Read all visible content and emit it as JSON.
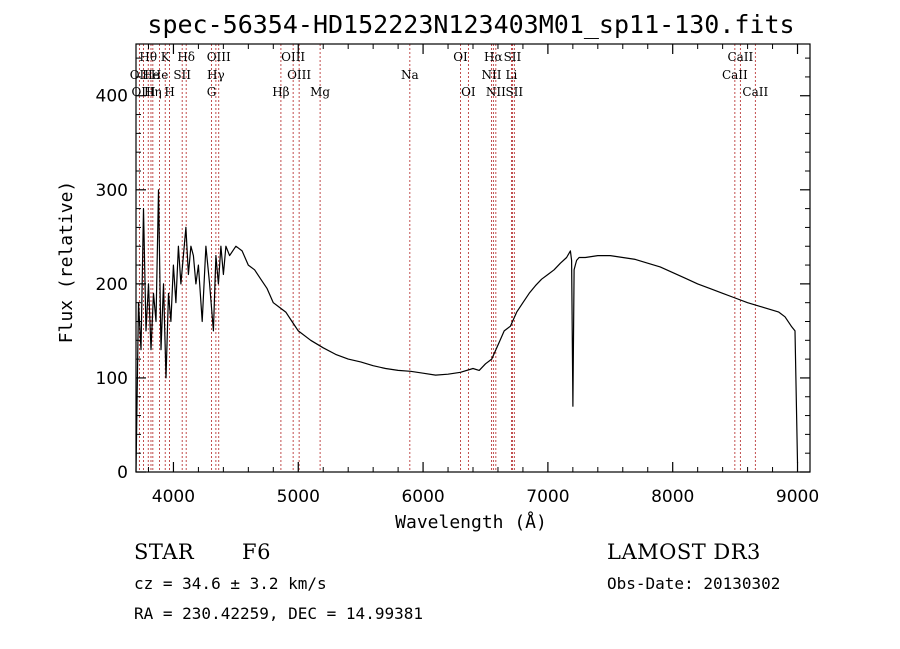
{
  "chart_data": {
    "type": "line",
    "title": "spec-56354-HD152223N123403M01_sp11-130.fits",
    "xlabel": "Wavelength (Å)",
    "ylabel": "Flux (relative)",
    "xlim": [
      3700,
      9100
    ],
    "ylim": [
      0,
      455
    ],
    "xticks": [
      4000,
      5000,
      6000,
      7000,
      8000,
      9000
    ],
    "yticks": [
      0,
      100,
      200,
      300,
      400
    ],
    "grid": false,
    "series": [
      {
        "name": "flux",
        "x": [
          3700,
          3720,
          3740,
          3760,
          3780,
          3800,
          3820,
          3840,
          3860,
          3880,
          3900,
          3920,
          3940,
          3960,
          3980,
          4000,
          4020,
          4040,
          4060,
          4080,
          4100,
          4120,
          4140,
          4160,
          4180,
          4200,
          4230,
          4260,
          4290,
          4320,
          4340,
          4360,
          4380,
          4400,
          4420,
          4450,
          4500,
          4550,
          4600,
          4650,
          4700,
          4750,
          4800,
          4850,
          4900,
          4950,
          5000,
          5100,
          5200,
          5300,
          5400,
          5500,
          5600,
          5700,
          5800,
          5900,
          6000,
          6100,
          6200,
          6300,
          6400,
          6450,
          6500,
          6550,
          6600,
          6650,
          6700,
          6750,
          6800,
          6850,
          6900,
          6950,
          7000,
          7050,
          7100,
          7150,
          7180,
          7190,
          7200,
          7210,
          7220,
          7230,
          7250,
          7300,
          7400,
          7500,
          7600,
          7700,
          7800,
          7900,
          8000,
          8100,
          8200,
          8300,
          8400,
          8500,
          8600,
          8700,
          8800,
          8850,
          8900,
          8950,
          8980,
          9000
        ],
        "y": [
          0,
          180,
          130,
          280,
          150,
          200,
          130,
          190,
          160,
          300,
          130,
          200,
          100,
          190,
          160,
          220,
          180,
          240,
          200,
          230,
          260,
          210,
          240,
          230,
          200,
          220,
          160,
          240,
          200,
          150,
          230,
          200,
          240,
          210,
          240,
          230,
          240,
          235,
          220,
          215,
          205,
          195,
          180,
          175,
          170,
          160,
          150,
          140,
          132,
          125,
          120,
          117,
          113,
          110,
          108,
          107,
          105,
          103,
          104,
          106,
          110,
          108,
          115,
          120,
          135,
          150,
          155,
          170,
          180,
          190,
          198,
          205,
          210,
          215,
          222,
          228,
          235,
          225,
          70,
          215,
          220,
          225,
          228,
          228,
          230,
          230,
          228,
          226,
          222,
          218,
          212,
          206,
          200,
          195,
          190,
          185,
          180,
          176,
          172,
          170,
          165,
          155,
          150,
          10
        ]
      }
    ],
    "lines": [
      {
        "label": "Hθ",
        "w": 3798,
        "row": 0
      },
      {
        "label": "OII",
        "w": 3727,
        "row": 1
      },
      {
        "label": "OIII",
        "w": 3760,
        "row": 2
      },
      {
        "label": "He",
        "w": 3820,
        "row": 1
      },
      {
        "label": "Hη",
        "w": 3835,
        "row": 2
      },
      {
        "label": "K",
        "w": 3934,
        "row": 0
      },
      {
        "label": "He",
        "w": 3889,
        "row": 1
      },
      {
        "label": "H",
        "w": 3969,
        "row": 2
      },
      {
        "label": "Hδ",
        "w": 4102,
        "row": 0
      },
      {
        "label": "SII",
        "w": 4070,
        "row": 1
      },
      {
        "label": "OIII",
        "w": 4363,
        "row": 0
      },
      {
        "label": "Hγ",
        "w": 4340,
        "row": 1
      },
      {
        "label": "G",
        "w": 4305,
        "row": 2
      },
      {
        "label": "Hβ",
        "w": 4861,
        "row": 2
      },
      {
        "label": "OIII",
        "w": 4959,
        "row": 0
      },
      {
        "label": "OIII",
        "w": 5007,
        "row": 1
      },
      {
        "label": "Mg",
        "w": 5175,
        "row": 2
      },
      {
        "label": "Na",
        "w": 5894,
        "row": 1
      },
      {
        "label": "OI",
        "w": 6300,
        "row": 0
      },
      {
        "label": "OI",
        "w": 6363,
        "row": 2
      },
      {
        "label": "Hα",
        "w": 6563,
        "row": 0
      },
      {
        "label": "NII",
        "w": 6548,
        "row": 1
      },
      {
        "label": "NII",
        "w": 6583,
        "row": 2
      },
      {
        "label": "SII",
        "w": 6716,
        "row": 0
      },
      {
        "label": "Li",
        "w": 6708,
        "row": 1
      },
      {
        "label": "SII",
        "w": 6731,
        "row": 2
      },
      {
        "label": "CaII",
        "w": 8542,
        "row": 0
      },
      {
        "label": "CaII",
        "w": 8498,
        "row": 1
      },
      {
        "label": "CaII",
        "w": 8662,
        "row": 2
      }
    ]
  },
  "info": {
    "obj_class": "STAR",
    "subclass": "F6",
    "survey": "LAMOST DR3",
    "redshift": "cz = 34.6 ± 3.2 km/s",
    "obs_date": "Obs-Date: 20130302",
    "coords": "RA = 230.42259, DEC =  14.99381"
  }
}
